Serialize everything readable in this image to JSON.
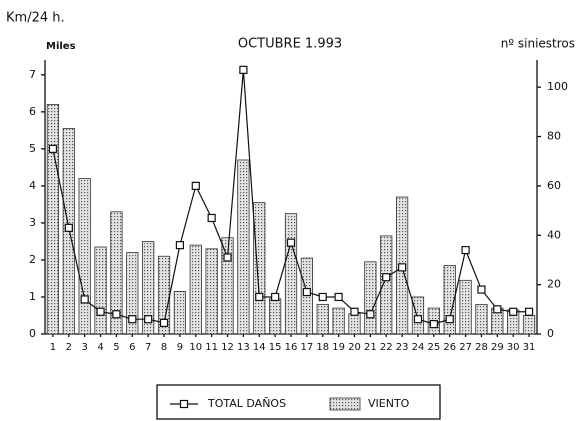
{
  "chart_data": {
    "type": "bar-line",
    "title": "OCTUBRE 1.993",
    "y_label": "Km/24 h.",
    "y_unit": "Miles",
    "y2_label": "nº siniestros",
    "categories": [
      "1",
      "2",
      "3",
      "4",
      "5",
      "6",
      "7",
      "8",
      "9",
      "10",
      "11",
      "12",
      "13",
      "14",
      "15",
      "16",
      "17",
      "18",
      "19",
      "20",
      "21",
      "22",
      "23",
      "24",
      "25",
      "26",
      "27",
      "28",
      "29",
      "30",
      "31"
    ],
    "series": [
      {
        "name": "VIENTO",
        "type": "bar",
        "color": "#bdbdbd",
        "axis": "y",
        "values": [
          6.2,
          5.55,
          4.2,
          2.35,
          3.3,
          2.2,
          2.5,
          2.1,
          1.15,
          2.4,
          2.3,
          2.6,
          4.7,
          3.55,
          0.95,
          3.25,
          2.05,
          0.8,
          0.7,
          0.55,
          1.95,
          2.65,
          3.7,
          1.0,
          0.7,
          1.85,
          1.45,
          0.8,
          0.7,
          0.65,
          0.5
        ]
      },
      {
        "name": "TOTAL DAÑOS",
        "type": "line",
        "color": "#111111",
        "axis": "y2",
        "values": [
          75,
          43,
          14,
          9,
          8,
          6,
          6,
          4.5,
          36,
          60,
          47,
          31,
          107,
          15,
          15,
          37,
          17,
          15,
          15,
          9,
          8,
          23,
          27,
          6,
          4,
          6,
          34,
          18,
          10,
          9,
          9
        ]
      }
    ],
    "ylim": [
      0,
      7.4
    ],
    "yticks": [
      0,
      1,
      2,
      3,
      4,
      5,
      6,
      7
    ],
    "y2lim": [
      0,
      111
    ],
    "y2ticks": [
      0,
      20,
      40,
      60,
      80,
      100
    ],
    "legend": "bottom"
  }
}
